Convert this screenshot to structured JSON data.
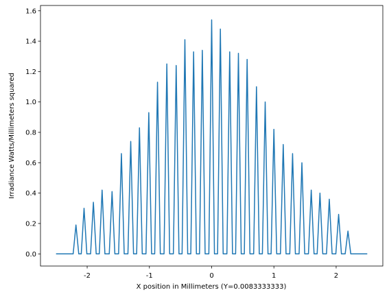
{
  "chart_data": {
    "type": "line",
    "xlabel": "X position in Millimeters (Y=0.0083333333)",
    "ylabel": "Irradiance Watts/Millimeters squared",
    "xlim": [
      -2.75,
      2.75
    ],
    "ylim": [
      -0.08,
      1.635
    ],
    "xticks": [
      -2,
      -1,
      0,
      1,
      2
    ],
    "yticks": [
      {
        "value": 0,
        "label": "0.0"
      },
      0.2,
      0.4,
      0.6,
      0.8,
      {
        "value": 1,
        "label": "1.0"
      },
      1.2,
      1.4,
      1.6
    ],
    "grid": false,
    "series": [
      {
        "color": "#1f77b4",
        "x": [
          -2.5,
          -2.225,
          -2.18,
          -2.135,
          -2.095,
          -2.05,
          -2.005,
          -1.945,
          -1.9,
          -1.855,
          -1.805,
          -1.76,
          -1.715,
          -1.645,
          -1.6,
          -1.555,
          -1.495,
          -1.45,
          -1.405,
          -1.345,
          -1.3,
          -1.255,
          -1.205,
          -1.16,
          -1.115,
          -1.055,
          -1.01,
          -0.965,
          -0.915,
          -0.87,
          -0.825,
          -0.765,
          -0.72,
          -0.675,
          -0.615,
          -0.57,
          -0.525,
          -0.475,
          -0.43,
          -0.385,
          -0.335,
          -0.29,
          -0.245,
          -0.195,
          -0.15,
          -0.105,
          -0.045,
          0,
          0.045,
          0.095,
          0.14,
          0.185,
          0.245,
          0.29,
          0.335,
          0.385,
          0.43,
          0.475,
          0.525,
          0.57,
          0.615,
          0.675,
          0.72,
          0.765,
          0.815,
          0.86,
          0.905,
          0.955,
          1,
          1.045,
          1.105,
          1.15,
          1.195,
          1.255,
          1.3,
          1.345,
          1.405,
          1.45,
          1.495,
          1.555,
          1.6,
          1.645,
          1.695,
          1.74,
          1.785,
          1.845,
          1.89,
          1.935,
          1.995,
          2.04,
          2.085,
          2.145,
          2.19,
          2.235,
          2.5
        ],
        "values": [
          0,
          0,
          0.19,
          0,
          0,
          0.3,
          0,
          0,
          0.34,
          0,
          0,
          0.42,
          0,
          0,
          0.41,
          0,
          0,
          0.66,
          0,
          0,
          0.74,
          0,
          0,
          0.83,
          0,
          0,
          0.93,
          0,
          0,
          1.13,
          0,
          0,
          1.25,
          0,
          0,
          1.24,
          0,
          0,
          1.41,
          0,
          0,
          1.33,
          0,
          0,
          1.34,
          0,
          0,
          1.54,
          0,
          0,
          1.48,
          0,
          0,
          1.33,
          0,
          0,
          1.32,
          0,
          0,
          1.28,
          0,
          0,
          1.1,
          0,
          0,
          1.0,
          0,
          0,
          0.82,
          0,
          0,
          0.72,
          0,
          0,
          0.66,
          0,
          0,
          0.6,
          0,
          0,
          0.42,
          0,
          0,
          0.4,
          0,
          0,
          0.36,
          0,
          0,
          0.26,
          0,
          0,
          0.15,
          0,
          0
        ]
      }
    ]
  }
}
